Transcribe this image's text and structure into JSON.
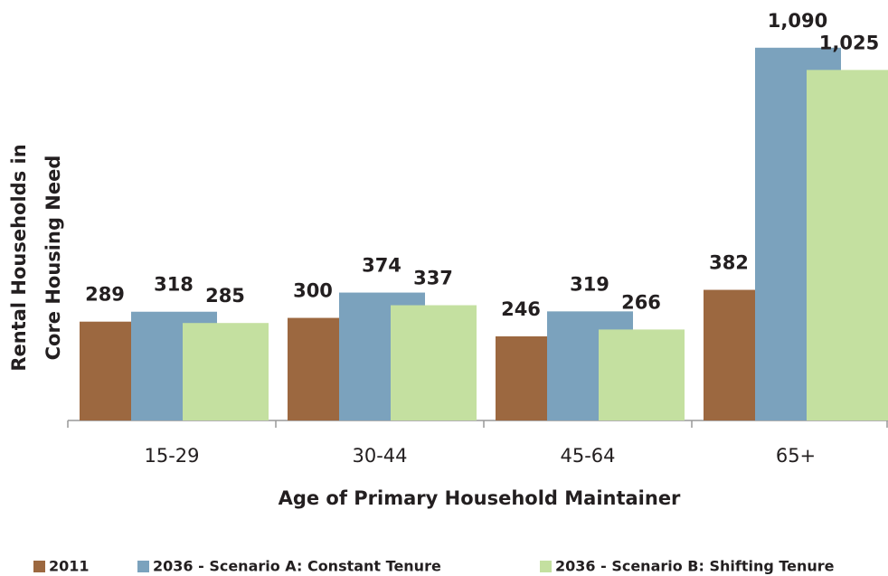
{
  "chart_data": {
    "type": "bar",
    "categories": [
      "15-29",
      "30-44",
      "45-64",
      "65+"
    ],
    "xlabel": "Age of Primary Household Maintainer",
    "ylabel": [
      "Rental Households in",
      "Core Housing Need"
    ],
    "ylim": [
      0,
      1100
    ],
    "series": [
      {
        "name": "2011",
        "color": "#9c6840",
        "values": [
          289,
          300,
          246,
          382
        ]
      },
      {
        "name": "2036 - Scenario A: Constant Tenure",
        "color": "#7ba2bd",
        "values": [
          318,
          374,
          319,
          1090
        ],
        "value_labels": [
          "318",
          "374",
          "319",
          "1,090"
        ]
      },
      {
        "name": "2036 - Scenario B: Shifting Tenure",
        "color": "#c4e0a0",
        "values": [
          285,
          337,
          266,
          1025
        ],
        "value_labels": [
          "285",
          "337",
          "266",
          "1,025"
        ]
      }
    ]
  }
}
